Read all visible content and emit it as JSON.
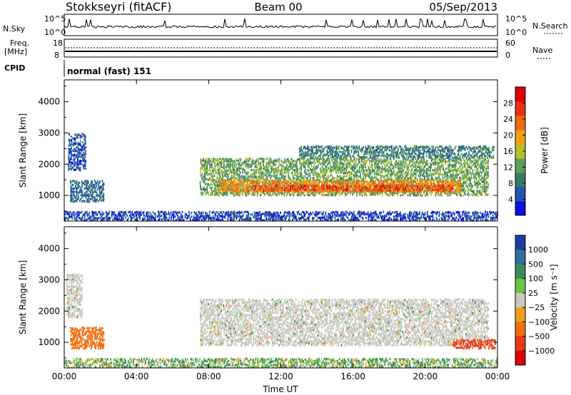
{
  "header": {
    "station": "Stokkseyri (fitACF)",
    "beam": "Beam 00",
    "date": "05/Sep/2013"
  },
  "summary_panels": {
    "nsky_label": "N.Sky",
    "nsky_ticks": [
      "10^5",
      "10^0"
    ],
    "nsearch_label": "N.Search",
    "nsearch_ticks": [
      "10^5",
      "10^0"
    ],
    "freq_label": "Freq.",
    "freq_unit": "[MHz]",
    "freq_ticks": [
      "18",
      "8"
    ],
    "nave_label": "Nave",
    "nave_ticks": [
      "60",
      "0"
    ],
    "cpid_label": "CPID",
    "cpid_value": "normal (fast) 151"
  },
  "colors": {
    "power": [
      "#1010dd",
      "#2255aa",
      "#3a7a6a",
      "#5aa05a",
      "#b6c02a",
      "#f0a010",
      "#f06a10",
      "#e83010",
      "#dd0000"
    ],
    "velocity": [
      "#1e3ca0",
      "#2e6ea0",
      "#3c8a5a",
      "#66c844",
      "#c8c8c0",
      "#f0a020",
      "#f07010",
      "#e83818",
      "#dd0000"
    ]
  },
  "chart_data": [
    {
      "type": "heatmap",
      "title": "Power",
      "xlabel": "Time UT",
      "ylabel": "Slant Range [km]",
      "x_ticks": [
        "00:00",
        "04:00",
        "08:00",
        "12:00",
        "16:00",
        "20:00",
        "00:00"
      ],
      "x_range_hours": [
        0,
        24
      ],
      "y_ticks": [
        "1000",
        "2000",
        "3000",
        "4000"
      ],
      "ylim": [
        180,
        4700
      ],
      "colorbar": {
        "label": "Power [dB]",
        "ticks": [
          "4",
          "8",
          "12",
          "16",
          "20",
          "24",
          "28"
        ],
        "range": [
          0,
          32
        ]
      },
      "regions": [
        {
          "t0": 0.3,
          "t1": 2.2,
          "r0": 800,
          "r1": 1500,
          "value": 8
        },
        {
          "t0": 0.2,
          "t1": 1.2,
          "r0": 1800,
          "r1": 3000,
          "value": 6
        },
        {
          "t0": 7.5,
          "t1": 23.5,
          "r0": 1000,
          "r1": 2200,
          "value": 14
        },
        {
          "t0": 8.5,
          "t1": 22.0,
          "r0": 1100,
          "r1": 1500,
          "value": 24
        },
        {
          "t0": 10.5,
          "t1": 21.5,
          "r0": 1150,
          "r1": 1350,
          "value": 29
        },
        {
          "t0": 13.0,
          "t1": 23.8,
          "r0": 2200,
          "r1": 2600,
          "value": 10
        },
        {
          "t0": 0.0,
          "t1": 24.0,
          "r0": 200,
          "r1": 500,
          "value": 5
        }
      ]
    },
    {
      "type": "heatmap",
      "title": "Velocity",
      "xlabel": "Time UT",
      "ylabel": "Slant Range [km]",
      "x_ticks": [
        "00:00",
        "04:00",
        "08:00",
        "12:00",
        "16:00",
        "20:00",
        "00:00"
      ],
      "x_range_hours": [
        0,
        24
      ],
      "y_ticks": [
        "1000",
        "2000",
        "3000",
        "4000"
      ],
      "ylim": [
        180,
        4700
      ],
      "colorbar": {
        "label": "Velocity [m s⁻¹]",
        "ticks": [
          "1000",
          "500",
          "100",
          "25",
          "−25",
          "−100",
          "−500",
          "−1000"
        ]
      },
      "regions": [
        {
          "t0": 0.3,
          "t1": 2.2,
          "r0": 800,
          "r1": 1500,
          "value": -300
        },
        {
          "t0": 0.1,
          "t1": 1.0,
          "r0": 1800,
          "r1": 3200,
          "value": 0
        },
        {
          "t0": 7.5,
          "t1": 23.5,
          "r0": 900,
          "r1": 2400,
          "value": 0
        },
        {
          "t0": 21.5,
          "t1": 23.9,
          "r0": 800,
          "r1": 1100,
          "value": -600
        },
        {
          "t0": 0.0,
          "t1": 24.0,
          "r0": 200,
          "r1": 500,
          "value": 80
        }
      ]
    }
  ]
}
